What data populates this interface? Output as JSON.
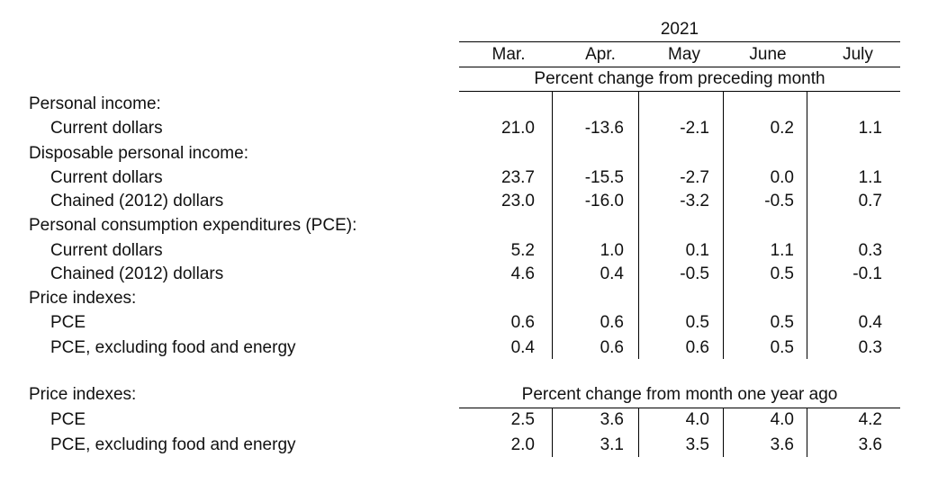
{
  "header": {
    "year": "2021",
    "months": [
      "Mar.",
      "Apr.",
      "May",
      "June",
      "July"
    ],
    "subtitle_monthly": "Percent change from preceding month",
    "subtitle_yoy": "Percent change from month one year ago"
  },
  "rows": {
    "personal_income": "Personal income:",
    "pi_current": {
      "label": "Current dollars",
      "values": [
        "21.0",
        "-13.6",
        "-2.1",
        "0.2",
        "1.1"
      ]
    },
    "dpi": "Disposable personal income:",
    "dpi_current": {
      "label": "Current dollars",
      "values": [
        "23.7",
        "-15.5",
        "-2.7",
        "0.0",
        "1.1"
      ]
    },
    "dpi_chained": {
      "label": "Chained (2012) dollars",
      "values": [
        "23.0",
        "-16.0",
        "-3.2",
        "-0.5",
        "0.7"
      ]
    },
    "pce_header": "Personal consumption expenditures (PCE):",
    "pce_current": {
      "label": "Current dollars",
      "values": [
        "5.2",
        "1.0",
        "0.1",
        "1.1",
        "0.3"
      ]
    },
    "pce_chained": {
      "label": "Chained (2012) dollars",
      "values": [
        "4.6",
        "0.4",
        "-0.5",
        "0.5",
        "-0.1"
      ]
    },
    "price_idx": "Price indexes:",
    "pidx_pce": {
      "label": "PCE",
      "values": [
        "0.6",
        "0.6",
        "0.5",
        "0.5",
        "0.4"
      ]
    },
    "pidx_core": {
      "label": "PCE, excluding food and energy",
      "values": [
        "0.4",
        "0.6",
        "0.6",
        "0.5",
        "0.3"
      ]
    },
    "price_idx_yoy": "Price indexes:",
    "yoy_pce": {
      "label": "PCE",
      "values": [
        "2.5",
        "3.6",
        "4.0",
        "4.0",
        "4.2"
      ]
    },
    "yoy_core": {
      "label": "PCE, excluding food and energy",
      "values": [
        "2.0",
        "3.1",
        "3.5",
        "3.6",
        "3.6"
      ]
    }
  }
}
